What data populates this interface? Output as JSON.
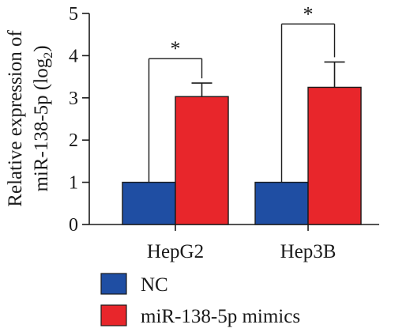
{
  "chart_data": {
    "type": "bar",
    "categories": [
      "HepG2",
      "Hep3B"
    ],
    "series": [
      {
        "name": "NC",
        "values": [
          1.0,
          1.0
        ],
        "errors": [
          0,
          0
        ],
        "color": "#1f4ea3"
      },
      {
        "name": "miR-138-5p mimics",
        "values": [
          3.03,
          3.25
        ],
        "errors": [
          0.32,
          0.6
        ],
        "color": "#e8262b"
      }
    ],
    "ylabel_line1": "Relative expression of",
    "ylabel_line2": "miR-138-5p (log",
    "ylabel_sub": "2",
    "ylabel_close": ")",
    "ylim": [
      0,
      5
    ],
    "yticks": [
      "0",
      "1",
      "2",
      "3",
      "4",
      "5"
    ],
    "significance": [
      {
        "category": "HepG2",
        "label": "*"
      },
      {
        "category": "Hep3B",
        "label": "*"
      }
    ],
    "legend_position": "bottom-left",
    "grid": false
  }
}
